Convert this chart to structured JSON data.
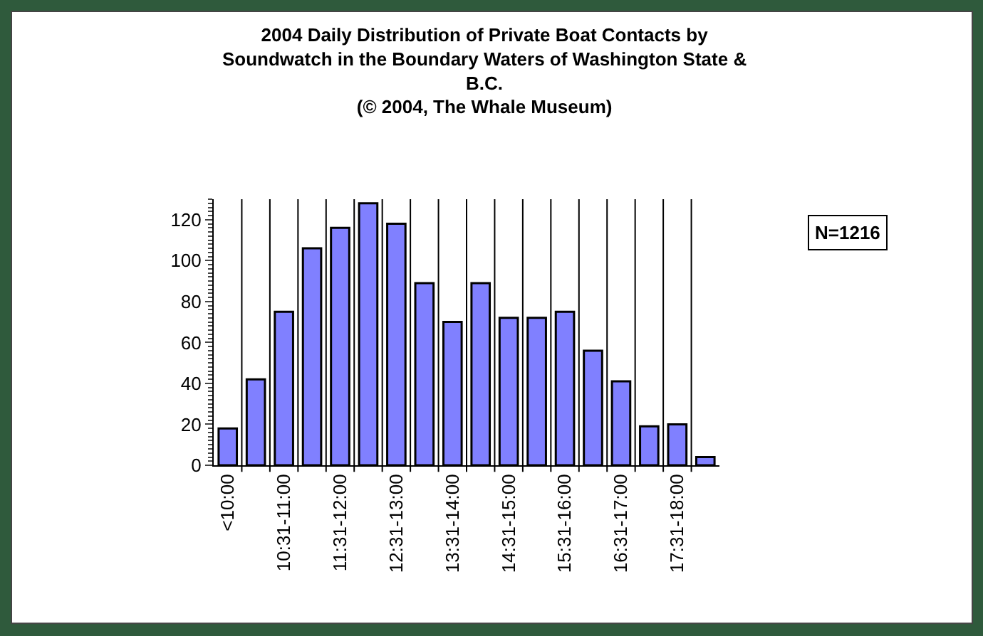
{
  "chart_data": {
    "type": "bar",
    "title": "2004 Daily Distribution of Private Boat Contacts by Soundwatch in the Boundary Waters of Washington State & B.C.",
    "subtitle": "(© 2004, The Whale Museum)",
    "categories": [
      "<10:00",
      null,
      "10:31-11:00",
      null,
      "11:31-12:00",
      null,
      "12:31-13:00",
      null,
      "13:31-14:00",
      null,
      "14:31-15:00",
      null,
      "15:31-16:00",
      null,
      "16:31-17:00",
      null,
      "17:31-18:00",
      null
    ],
    "values": [
      18,
      42,
      75,
      106,
      116,
      128,
      118,
      89,
      70,
      89,
      72,
      72,
      75,
      56,
      41,
      19,
      20,
      4
    ],
    "color": "#8080ff",
    "ylim": [
      0,
      130
    ],
    "yticks": [
      0,
      20,
      40,
      60,
      80,
      100,
      120
    ],
    "grid": "x",
    "legend": false,
    "annotations": [
      "N=1216"
    ]
  }
}
